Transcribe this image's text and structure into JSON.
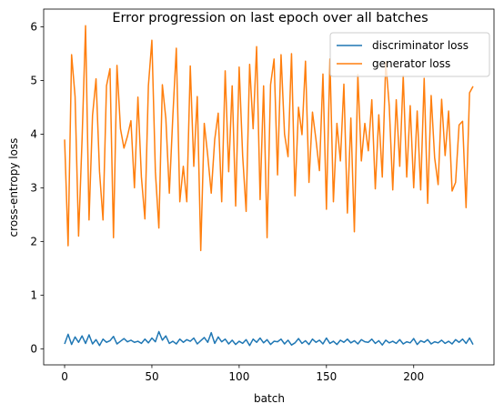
{
  "chart_data": {
    "type": "line",
    "title": "Error progression on last epoch over all batches",
    "xlabel": "batch",
    "ylabel": "cross-entropy loss",
    "xlim": [
      -12,
      246
    ],
    "ylim": [
      -0.3,
      6.33
    ],
    "xticks": [
      0,
      50,
      100,
      150,
      200
    ],
    "yticks": [
      0,
      1,
      2,
      3,
      4,
      5,
      6
    ],
    "grid": false,
    "legend_position": "top-right",
    "series": [
      {
        "name": "discriminator loss",
        "color": "#1f77b4",
        "x": [
          0,
          2,
          4,
          6,
          8,
          10,
          12,
          14,
          16,
          18,
          20,
          22,
          24,
          26,
          28,
          30,
          32,
          34,
          36,
          38,
          40,
          42,
          44,
          46,
          48,
          50,
          52,
          54,
          56,
          58,
          60,
          62,
          64,
          66,
          68,
          70,
          72,
          74,
          76,
          78,
          80,
          82,
          84,
          86,
          88,
          90,
          92,
          94,
          96,
          98,
          100,
          102,
          104,
          106,
          108,
          110,
          112,
          114,
          116,
          118,
          120,
          122,
          124,
          126,
          128,
          130,
          132,
          134,
          136,
          138,
          140,
          142,
          144,
          146,
          148,
          150,
          152,
          154,
          156,
          158,
          160,
          162,
          164,
          166,
          168,
          170,
          172,
          174,
          176,
          178,
          180,
          182,
          184,
          186,
          188,
          190,
          192,
          194,
          196,
          198,
          200,
          202,
          204,
          206,
          208,
          210,
          212,
          214,
          216,
          218,
          220,
          222,
          224,
          226,
          228,
          230,
          232,
          234
        ],
        "values": [
          0.09,
          0.27,
          0.08,
          0.22,
          0.12,
          0.24,
          0.1,
          0.26,
          0.09,
          0.17,
          0.06,
          0.18,
          0.12,
          0.15,
          0.23,
          0.09,
          0.14,
          0.19,
          0.13,
          0.16,
          0.12,
          0.14,
          0.1,
          0.18,
          0.11,
          0.2,
          0.13,
          0.32,
          0.16,
          0.24,
          0.1,
          0.14,
          0.09,
          0.18,
          0.12,
          0.17,
          0.14,
          0.2,
          0.09,
          0.15,
          0.21,
          0.12,
          0.3,
          0.1,
          0.22,
          0.13,
          0.18,
          0.09,
          0.16,
          0.08,
          0.14,
          0.1,
          0.17,
          0.06,
          0.18,
          0.12,
          0.2,
          0.11,
          0.17,
          0.08,
          0.14,
          0.13,
          0.18,
          0.09,
          0.16,
          0.07,
          0.11,
          0.19,
          0.1,
          0.15,
          0.08,
          0.18,
          0.12,
          0.16,
          0.09,
          0.2,
          0.1,
          0.14,
          0.08,
          0.16,
          0.12,
          0.18,
          0.11,
          0.15,
          0.09,
          0.17,
          0.13,
          0.12,
          0.18,
          0.1,
          0.15,
          0.07,
          0.16,
          0.11,
          0.14,
          0.1,
          0.17,
          0.09,
          0.13,
          0.11,
          0.19,
          0.08,
          0.15,
          0.12,
          0.17,
          0.09,
          0.13,
          0.11,
          0.16,
          0.1,
          0.14,
          0.09,
          0.17,
          0.12,
          0.18,
          0.1,
          0.2,
          0.08
        ]
      },
      {
        "name": "generator loss",
        "color": "#ff7f0e",
        "x": [
          0,
          2,
          4,
          6,
          8,
          10,
          12,
          14,
          16,
          18,
          20,
          22,
          24,
          26,
          28,
          30,
          32,
          34,
          36,
          38,
          40,
          42,
          44,
          46,
          48,
          50,
          52,
          54,
          56,
          58,
          60,
          62,
          64,
          66,
          68,
          70,
          72,
          74,
          76,
          78,
          80,
          82,
          84,
          86,
          88,
          90,
          92,
          94,
          96,
          98,
          100,
          102,
          104,
          106,
          108,
          110,
          112,
          114,
          116,
          118,
          120,
          122,
          124,
          126,
          128,
          130,
          132,
          134,
          136,
          138,
          140,
          142,
          144,
          146,
          148,
          150,
          152,
          154,
          156,
          158,
          160,
          162,
          164,
          166,
          168,
          170,
          172,
          174,
          176,
          178,
          180,
          182,
          184,
          186,
          188,
          190,
          192,
          194,
          196,
          198,
          200,
          202,
          204,
          206,
          208,
          210,
          212,
          214,
          216,
          218,
          220,
          222,
          224,
          226,
          228,
          230,
          232,
          234
        ],
        "values": [
          3.9,
          1.92,
          5.48,
          4.7,
          2.1,
          3.9,
          6.02,
          2.4,
          4.35,
          5.03,
          3.3,
          2.4,
          4.9,
          5.22,
          2.07,
          5.28,
          4.1,
          3.74,
          3.96,
          4.25,
          3.0,
          4.69,
          3.2,
          2.42,
          4.9,
          5.75,
          3.3,
          2.25,
          4.92,
          4.29,
          2.9,
          4.33,
          5.6,
          2.74,
          3.4,
          2.74,
          5.27,
          3.4,
          4.7,
          1.83,
          4.2,
          3.6,
          2.9,
          3.9,
          4.39,
          2.74,
          5.18,
          3.3,
          4.9,
          2.66,
          5.25,
          3.6,
          2.56,
          5.3,
          4.1,
          5.63,
          2.78,
          4.9,
          2.07,
          4.92,
          5.4,
          3.24,
          5.48,
          4.0,
          3.58,
          5.5,
          2.85,
          4.5,
          3.99,
          5.36,
          3.1,
          4.41,
          3.9,
          3.32,
          5.12,
          2.6,
          5.4,
          2.74,
          4.2,
          3.5,
          4.93,
          2.53,
          4.3,
          2.18,
          5.11,
          3.5,
          4.2,
          3.69,
          4.64,
          2.98,
          4.36,
          3.2,
          5.35,
          4.52,
          2.96,
          4.64,
          3.4,
          5.09,
          3.2,
          4.53,
          3.0,
          4.43,
          2.96,
          5.04,
          2.71,
          4.72,
          3.56,
          3.06,
          4.65,
          3.6,
          4.43,
          2.94,
          3.1,
          4.17,
          4.24,
          2.63,
          4.77,
          4.89
        ]
      }
    ]
  }
}
